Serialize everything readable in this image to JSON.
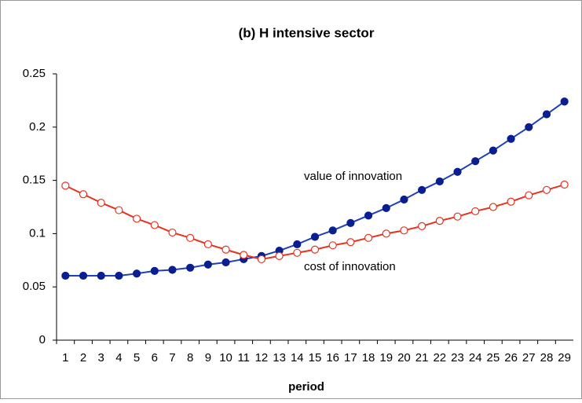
{
  "chart_data": {
    "type": "line",
    "title": "(b) H intensive sector",
    "x_label": "period",
    "categories": [
      1,
      2,
      3,
      4,
      5,
      6,
      7,
      8,
      9,
      10,
      11,
      12,
      13,
      14,
      15,
      16,
      17,
      18,
      19,
      20,
      21,
      22,
      23,
      24,
      25,
      26,
      27,
      28,
      29
    ],
    "series": [
      {
        "name": "value of innovation",
        "color": "#1f3fbf",
        "marker_color": "#0a1f8f",
        "marker": "filled",
        "values": [
          0.0605,
          0.0605,
          0.0605,
          0.0605,
          0.0625,
          0.065,
          0.066,
          0.068,
          0.071,
          0.073,
          0.076,
          0.079,
          0.084,
          0.09,
          0.097,
          0.103,
          0.11,
          0.117,
          0.124,
          0.132,
          0.141,
          0.149,
          0.158,
          0.168,
          0.178,
          0.189,
          0.2,
          0.212,
          0.224
        ]
      },
      {
        "name": "cost of innovation",
        "color": "#e8321e",
        "marker_color": "#e8321e",
        "marker": "hollow",
        "values": [
          0.145,
          0.137,
          0.129,
          0.122,
          0.114,
          0.108,
          0.101,
          0.096,
          0.09,
          0.085,
          0.08,
          0.076,
          0.079,
          0.082,
          0.085,
          0.089,
          0.092,
          0.096,
          0.1,
          0.103,
          0.107,
          0.112,
          0.116,
          0.121,
          0.125,
          0.13,
          0.136,
          0.141,
          0.146
        ]
      }
    ],
    "ylim": [
      0,
      0.25
    ],
    "yticks": [
      0,
      0.05,
      0.1,
      0.15,
      0.2,
      0.25
    ],
    "grid": false
  }
}
